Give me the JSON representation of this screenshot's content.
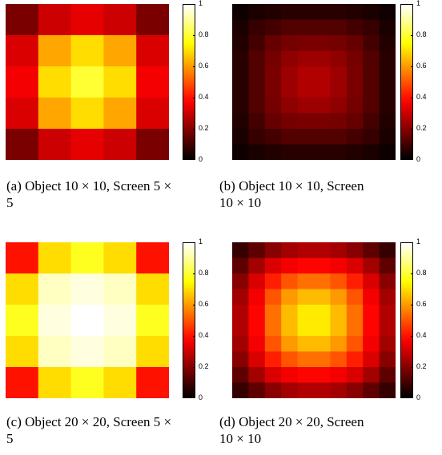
{
  "chart_data": [
    {
      "type": "heatmap",
      "panel_label": "(a)",
      "caption": {
        "line1": "(a)  Object 10 × 10, Screen 5 ×",
        "line2": "5"
      },
      "colorbar": {
        "min": 0,
        "max": 1,
        "ticks": [
          "1",
          "0.8",
          "0.6",
          "0.4",
          "0.2",
          "0"
        ]
      },
      "colormap": "hot",
      "rows": 5,
      "cols": 5,
      "values": [
        [
          0.18,
          0.3,
          0.34,
          0.3,
          0.18
        ],
        [
          0.32,
          0.62,
          0.7,
          0.62,
          0.32
        ],
        [
          0.36,
          0.7,
          0.8,
          0.7,
          0.36
        ],
        [
          0.32,
          0.62,
          0.7,
          0.62,
          0.32
        ],
        [
          0.18,
          0.3,
          0.34,
          0.3,
          0.18
        ]
      ]
    },
    {
      "type": "heatmap",
      "panel_label": "(b)",
      "caption": {
        "line1": "(b)  Object  10  ×  10,  Screen",
        "line2": "10 × 10"
      },
      "colorbar": {
        "min": 0,
        "max": 1,
        "ticks": [
          "1",
          "0.8",
          "0.6",
          "0.4",
          "0.2",
          "0"
        ]
      },
      "colormap": "hot",
      "rows": 10,
      "cols": 10,
      "values": [
        [
          0.02,
          0.04,
          0.05,
          0.06,
          0.06,
          0.06,
          0.06,
          0.05,
          0.04,
          0.02
        ],
        [
          0.04,
          0.08,
          0.1,
          0.12,
          0.12,
          0.12,
          0.12,
          0.1,
          0.08,
          0.04
        ],
        [
          0.05,
          0.1,
          0.15,
          0.17,
          0.18,
          0.18,
          0.17,
          0.15,
          0.1,
          0.05
        ],
        [
          0.06,
          0.12,
          0.17,
          0.21,
          0.23,
          0.23,
          0.21,
          0.17,
          0.12,
          0.06
        ],
        [
          0.06,
          0.12,
          0.18,
          0.23,
          0.26,
          0.26,
          0.23,
          0.18,
          0.12,
          0.06
        ],
        [
          0.06,
          0.12,
          0.18,
          0.23,
          0.26,
          0.26,
          0.23,
          0.18,
          0.12,
          0.06
        ],
        [
          0.06,
          0.12,
          0.17,
          0.21,
          0.23,
          0.23,
          0.21,
          0.17,
          0.12,
          0.06
        ],
        [
          0.05,
          0.1,
          0.15,
          0.17,
          0.18,
          0.18,
          0.17,
          0.15,
          0.1,
          0.05
        ],
        [
          0.04,
          0.08,
          0.1,
          0.12,
          0.12,
          0.12,
          0.12,
          0.1,
          0.08,
          0.04
        ],
        [
          0.02,
          0.04,
          0.05,
          0.06,
          0.06,
          0.06,
          0.06,
          0.05,
          0.04,
          0.02
        ]
      ]
    },
    {
      "type": "heatmap",
      "panel_label": "(c)",
      "caption": {
        "line1": "(c)  Object 20 × 20, Screen 5 ×",
        "line2": "5"
      },
      "colorbar": {
        "min": 0,
        "max": 1,
        "ticks": [
          "1",
          "0.8",
          "0.6",
          "0.4",
          "0.2",
          "0"
        ]
      },
      "colormap": "hot",
      "rows": 5,
      "cols": 5,
      "values": [
        [
          0.4,
          0.7,
          0.78,
          0.7,
          0.4
        ],
        [
          0.7,
          0.94,
          0.97,
          0.94,
          0.7
        ],
        [
          0.78,
          0.97,
          1.0,
          0.97,
          0.78
        ],
        [
          0.7,
          0.94,
          0.97,
          0.94,
          0.7
        ],
        [
          0.4,
          0.7,
          0.78,
          0.7,
          0.4
        ]
      ]
    },
    {
      "type": "heatmap",
      "panel_label": "(d)",
      "caption": {
        "line1": "(d)  Object  20  ×  20,  Screen",
        "line2": "10 × 10"
      },
      "colorbar": {
        "min": 0,
        "max": 1,
        "ticks": [
          "1",
          "0.8",
          "0.6",
          "0.4",
          "0.2",
          "0"
        ]
      },
      "colormap": "hot",
      "rows": 10,
      "cols": 10,
      "values": [
        [
          0.08,
          0.14,
          0.2,
          0.24,
          0.26,
          0.26,
          0.24,
          0.2,
          0.14,
          0.08
        ],
        [
          0.14,
          0.24,
          0.32,
          0.36,
          0.38,
          0.38,
          0.36,
          0.32,
          0.24,
          0.14
        ],
        [
          0.2,
          0.32,
          0.42,
          0.5,
          0.54,
          0.54,
          0.5,
          0.42,
          0.32,
          0.2
        ],
        [
          0.24,
          0.36,
          0.5,
          0.6,
          0.65,
          0.65,
          0.6,
          0.5,
          0.36,
          0.24
        ],
        [
          0.26,
          0.38,
          0.54,
          0.65,
          0.72,
          0.72,
          0.65,
          0.54,
          0.38,
          0.26
        ],
        [
          0.26,
          0.38,
          0.54,
          0.65,
          0.72,
          0.72,
          0.65,
          0.54,
          0.38,
          0.26
        ],
        [
          0.24,
          0.36,
          0.5,
          0.6,
          0.65,
          0.65,
          0.6,
          0.5,
          0.36,
          0.24
        ],
        [
          0.2,
          0.32,
          0.42,
          0.5,
          0.54,
          0.54,
          0.5,
          0.42,
          0.32,
          0.2
        ],
        [
          0.14,
          0.24,
          0.32,
          0.36,
          0.38,
          0.38,
          0.36,
          0.32,
          0.24,
          0.14
        ],
        [
          0.08,
          0.14,
          0.2,
          0.24,
          0.26,
          0.26,
          0.24,
          0.2,
          0.14,
          0.08
        ]
      ]
    }
  ]
}
